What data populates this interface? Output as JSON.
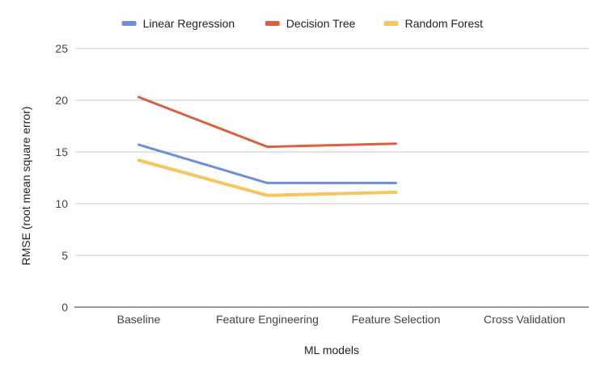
{
  "chart_data": {
    "type": "line",
    "title": "",
    "xlabel": "ML models",
    "ylabel": "RMSE (root mean square error)",
    "categories": [
      "Baseline",
      "Feature Engineering",
      "Feature Selection",
      "Cross Validation"
    ],
    "ylim": [
      0,
      25
    ],
    "yticks": [
      0,
      5,
      10,
      15,
      20,
      25
    ],
    "grid": true,
    "legend_position": "top",
    "series": [
      {
        "name": "Linear Regression",
        "color": "#6d8fdb",
        "values": [
          15.7,
          12.0,
          12.0,
          null
        ]
      },
      {
        "name": "Decision Tree",
        "color": "#d9613f",
        "values": [
          20.3,
          15.5,
          15.8,
          null
        ]
      },
      {
        "name": "Random Forest",
        "color": "#f4c65c",
        "values": [
          14.2,
          10.8,
          11.1,
          null
        ]
      }
    ]
  }
}
